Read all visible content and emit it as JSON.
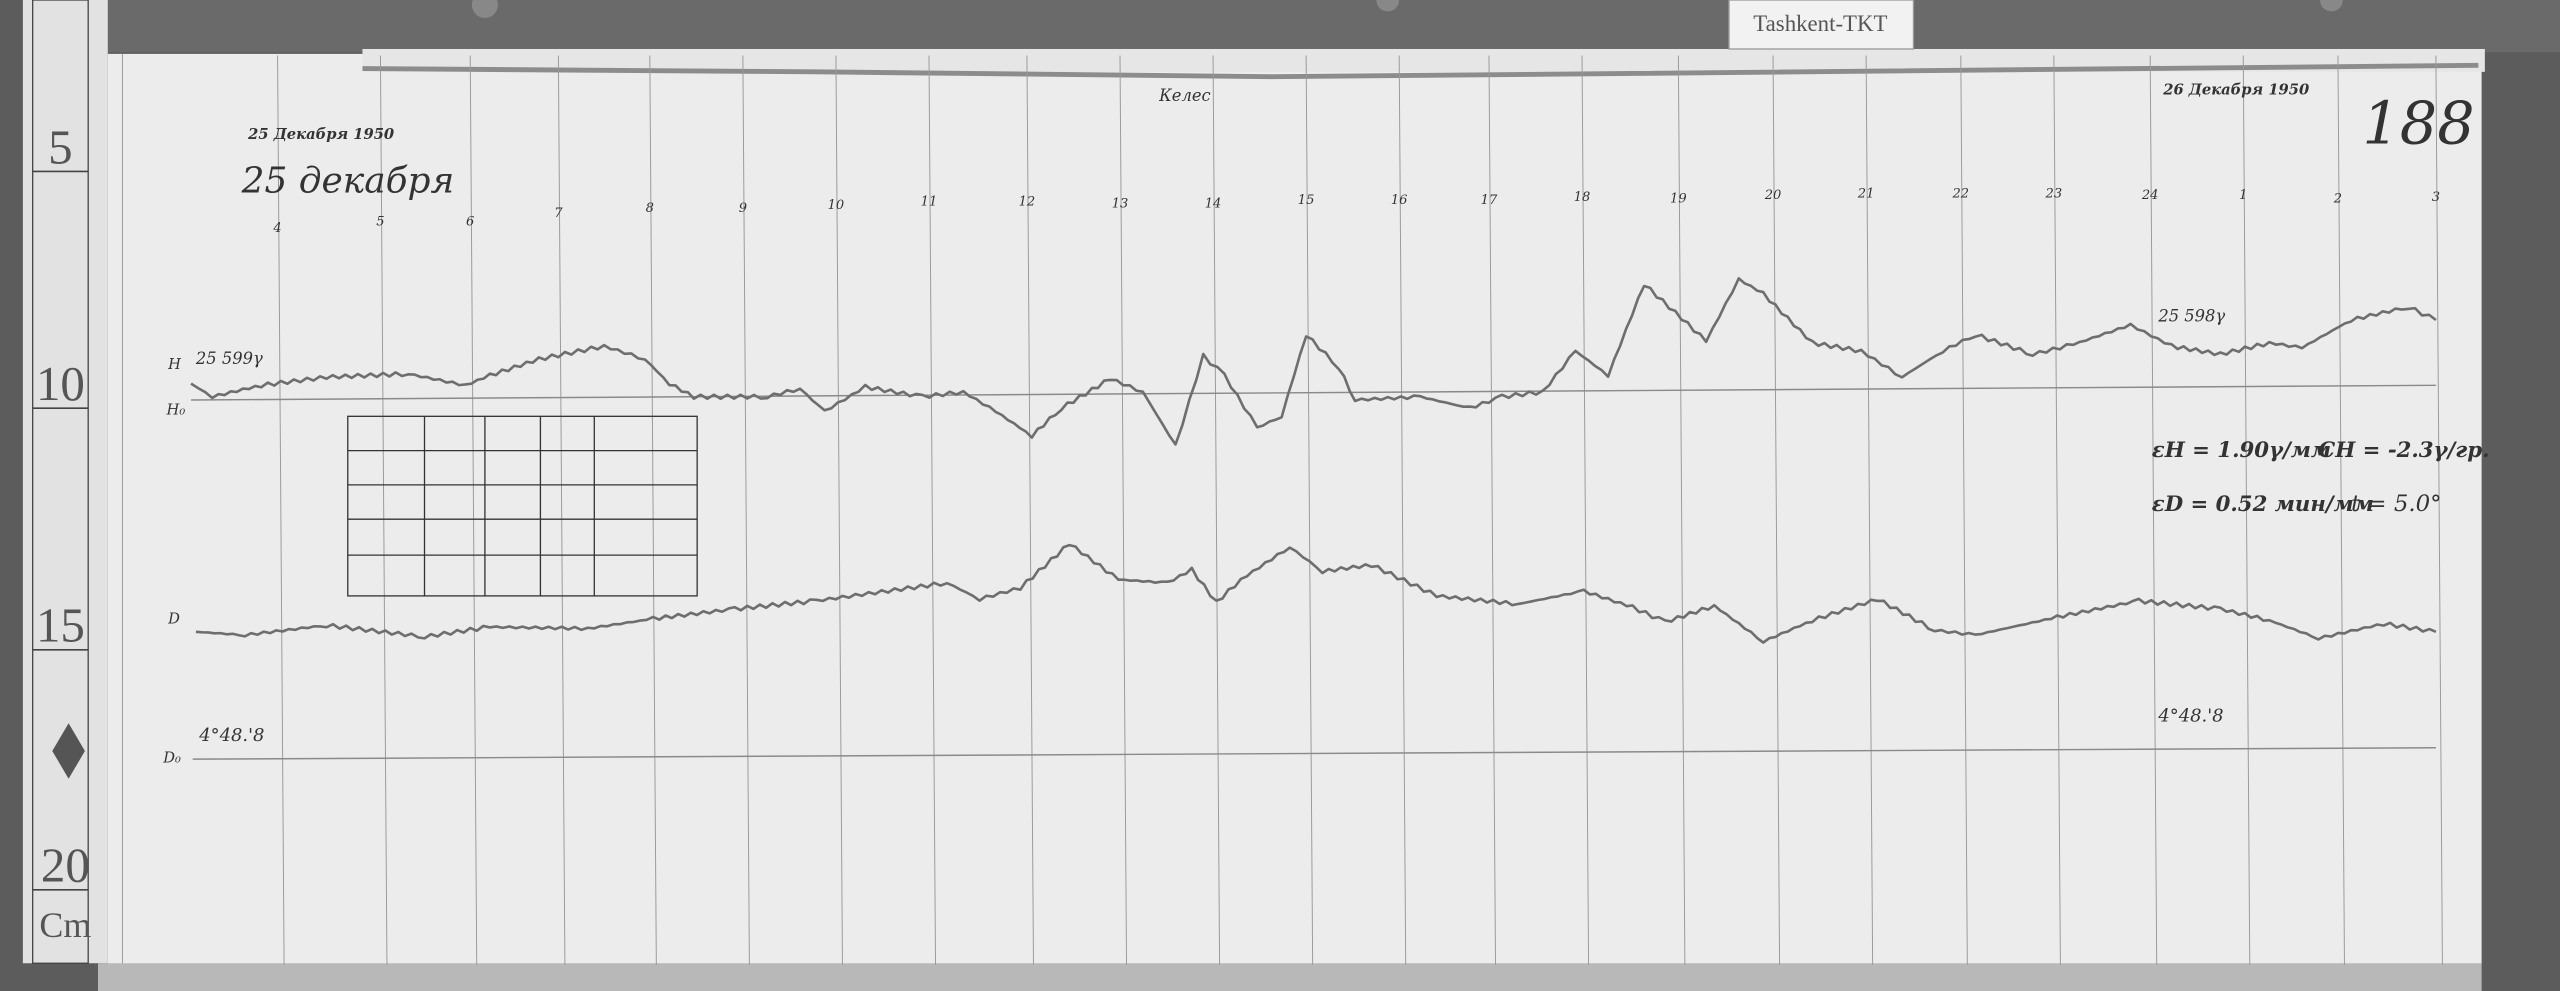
{
  "station_label": "Tashkent-TKT",
  "sheet_number": "188",
  "title_top": "Келес",
  "date_start_ink": "25 Декабря 1950",
  "date_start_pencil": "25 декабря",
  "date_end_ink": "26 Декабря 1950",
  "hour_ticks": [
    "4",
    "5",
    "6",
    "7",
    "8",
    "9",
    "10",
    "11",
    "12",
    "13",
    "14",
    "15",
    "16",
    "17",
    "18",
    "19",
    "20",
    "21",
    "22",
    "23",
    "24",
    "1",
    "2",
    "3"
  ],
  "h_trace": {
    "symbol": "H",
    "baseline_symbol": "H₀",
    "value_left": "25 599γ",
    "value_right": "25 598γ"
  },
  "d_trace": {
    "symbol": "D",
    "baseline_symbol": "D₀",
    "value_left": "4°48.'8",
    "value_right": "4°48.'8"
  },
  "annotations": {
    "line1_a": "εH = 1.90γ/мм",
    "line1_b": "CH = -2.3γ/гр.",
    "line2_a": "εD = 0.52 мин/мм",
    "line2_b": "t = 5.0°"
  },
  "ruler": {
    "marks": [
      "5",
      "10",
      "15",
      "20"
    ],
    "unit": "Cm"
  },
  "colors": {
    "background": "#5a5a5a",
    "paper": "#ececec",
    "trace": "#6e6e6e"
  }
}
